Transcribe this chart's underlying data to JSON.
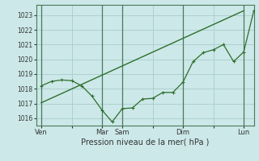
{
  "xlabel": "Pression niveau de la mer( hPa )",
  "bg_color": "#cce8e8",
  "grid_color": "#aacccc",
  "line_color": "#2d6e2d",
  "ylim": [
    1015.5,
    1023.7
  ],
  "yticks": [
    1016,
    1017,
    1018,
    1019,
    1020,
    1021,
    1022,
    1023
  ],
  "xtick_labels": [
    "Ven",
    "",
    "Mar",
    "Sam",
    "",
    "Dim",
    "",
    "Lun"
  ],
  "xtick_positions": [
    0,
    3,
    6,
    8,
    11,
    14,
    17,
    20
  ],
  "vline_positions": [
    0,
    6,
    8,
    14,
    20
  ],
  "trend_x": [
    0,
    20
  ],
  "trend_y": [
    1017.05,
    1023.3
  ],
  "actual_x": [
    0,
    1,
    2,
    3,
    4,
    5,
    6,
    7,
    8,
    9,
    10,
    11,
    12,
    13,
    14,
    15,
    16,
    17,
    18,
    19,
    20,
    21
  ],
  "actual_y": [
    1018.2,
    1018.5,
    1018.6,
    1018.55,
    1018.2,
    1017.5,
    1016.55,
    1015.75,
    1016.65,
    1016.7,
    1017.3,
    1017.35,
    1017.75,
    1017.75,
    1018.45,
    1019.85,
    1020.45,
    1020.65,
    1021.0,
    1019.85,
    1020.5,
    1023.3
  ]
}
